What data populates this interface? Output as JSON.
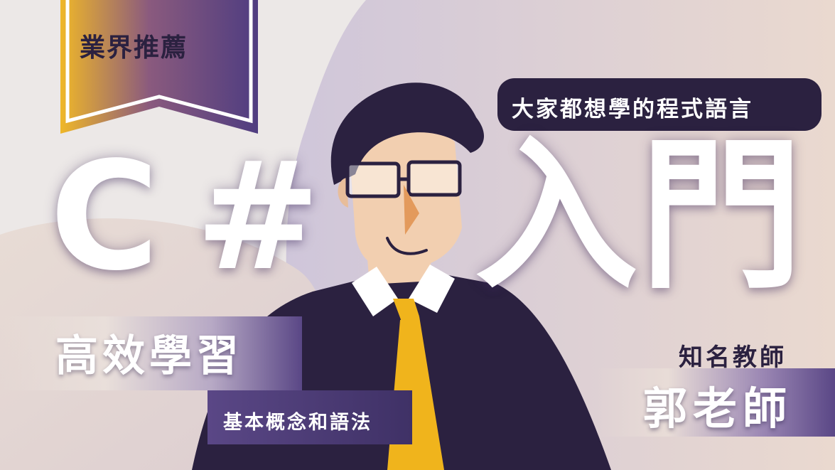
{
  "badge": {
    "label": "業界推薦"
  },
  "tagline": {
    "text": "大家都想學的程式語言"
  },
  "title": {
    "part1": "C",
    "part2": "#",
    "part3": "入",
    "part4": "門"
  },
  "feature": {
    "headline": "高效學習",
    "subline": "基本概念和語法"
  },
  "teacher": {
    "label": "知名教師",
    "name": "郭老師"
  },
  "colors": {
    "dark_purple": "#2b2140",
    "purple": "#5a4786",
    "lavender": "#cfc5d8",
    "beige": "#e8d8cf",
    "gold": "#f0b41c",
    "skin": "#f2cfb0",
    "nose": "#e39a5c",
    "white": "#ffffff"
  },
  "icons": [
    "man-illustration",
    "glasses-icon",
    "tie-icon",
    "banner-ribbon"
  ]
}
